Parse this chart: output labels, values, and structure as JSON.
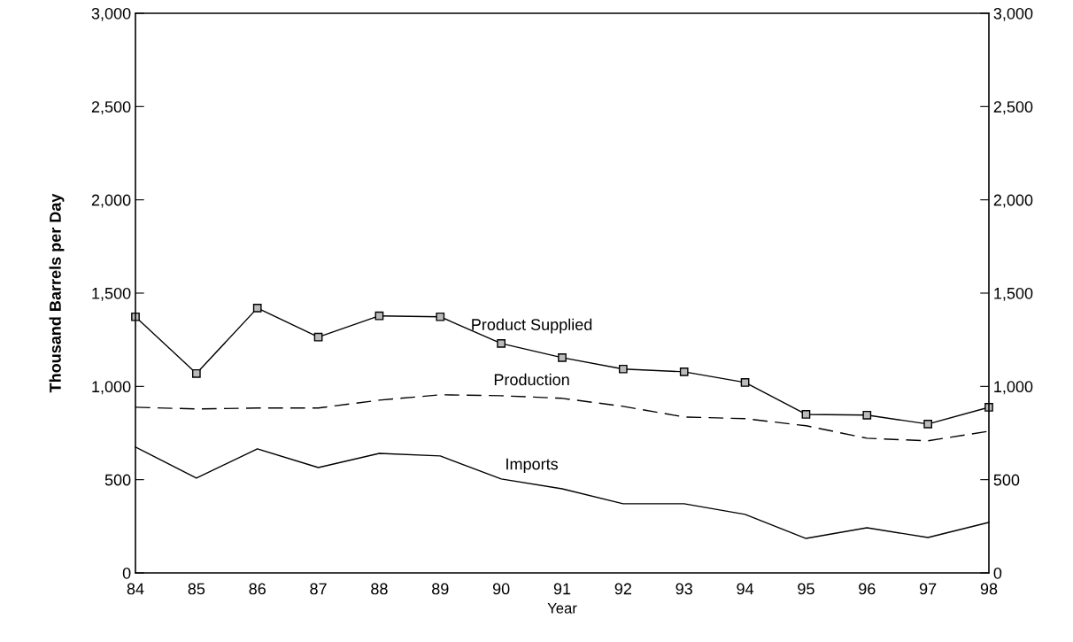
{
  "chart_data": {
    "type": "line",
    "xlabel": "Year",
    "ylabel": "Thousand Barrels per Day",
    "categories": [
      "84",
      "85",
      "86",
      "87",
      "88",
      "89",
      "90",
      "91",
      "92",
      "93",
      "94",
      "95",
      "96",
      "97",
      "98"
    ],
    "series": [
      {
        "name": "Product Supplied",
        "color": "#000000",
        "marker": "square",
        "line_style": "solid",
        "values": [
          1373,
          1069,
          1420,
          1264,
          1378,
          1373,
          1230,
          1154,
          1093,
          1078,
          1021,
          850,
          846,
          798,
          888
        ]
      },
      {
        "name": "Production",
        "color": "#000000",
        "marker": "none",
        "line_style": "dashed",
        "values": [
          888,
          879,
          884,
          884,
          926,
          955,
          950,
          936,
          893,
          836,
          827,
          789,
          722,
          708,
          760
        ]
      },
      {
        "name": "Imports",
        "color": "#000000",
        "marker": "none",
        "line_style": "solid",
        "values": [
          675,
          508,
          665,
          565,
          641,
          627,
          504,
          451,
          371,
          371,
          314,
          185,
          242,
          190,
          271
        ]
      }
    ],
    "ylim": [
      0,
      3000
    ],
    "yticks": [
      0,
      500,
      {
        "value": 1000,
        "label": "1,000"
      },
      {
        "value": 1500,
        "label": "1,500"
      },
      {
        "value": 2000,
        "label": "2,000"
      },
      {
        "value": 2500,
        "label": "2,500"
      },
      {
        "value": 3000,
        "label": "3,000"
      }
    ],
    "y2lim": [
      0,
      3000
    ],
    "y2ticks": [
      0,
      500,
      {
        "value": 1000,
        "label": "1,000"
      },
      {
        "value": 1500,
        "label": "1,500"
      },
      {
        "value": 2000,
        "label": "2,000"
      },
      {
        "value": 2500,
        "label": "2,500"
      },
      {
        "value": 3000,
        "label": "3,000"
      }
    ],
    "grid": false,
    "legend": false
  }
}
